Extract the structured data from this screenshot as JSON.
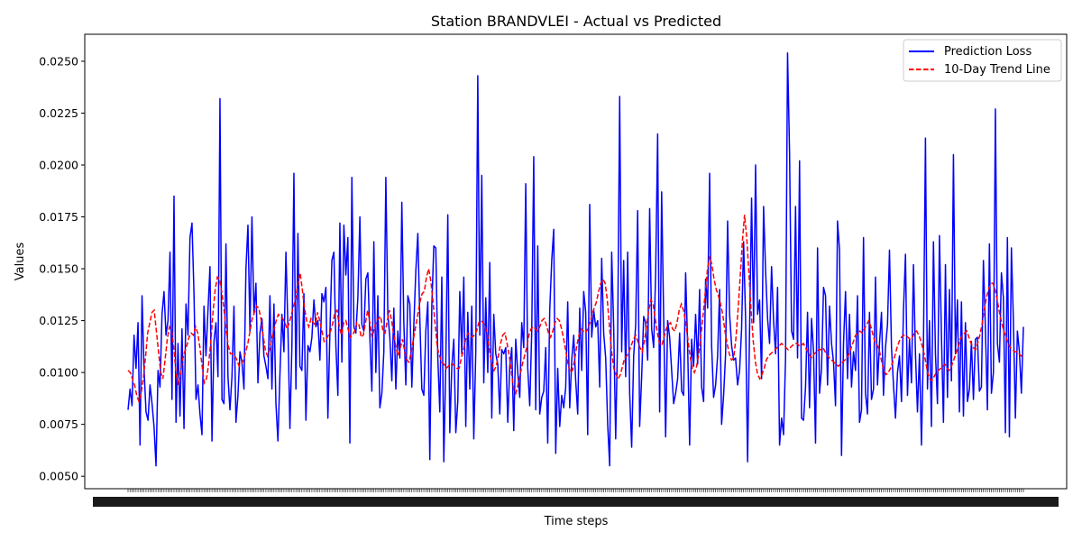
{
  "chart_data": {
    "type": "line",
    "title": "Station BRANDVLEI - Actual vs Predicted",
    "xlabel": "Time steps",
    "ylabel": "Values",
    "ylim": [
      0.0044,
      0.0263
    ],
    "yticks": [
      "0.0050",
      "0.0075",
      "0.0100",
      "0.0125",
      "0.0150",
      "0.0175",
      "0.0200",
      "0.0225",
      "0.0250"
    ],
    "x_tick_labels_note": "",
    "legend_position": "top-right",
    "grid": false,
    "series": [
      {
        "name": "Prediction Loss",
        "color": "#0000ff",
        "style": "solid",
        "values": [
          0.0082,
          0.0092,
          0.0084,
          0.0118,
          0.0102,
          0.0124,
          0.0065,
          0.0137,
          0.0102,
          0.0081,
          0.0077,
          0.0094,
          0.0085,
          0.0074,
          0.0055,
          0.0101,
          0.0093,
          0.0128,
          0.0139,
          0.0118,
          0.0125,
          0.0158,
          0.0087,
          0.0185,
          0.0076,
          0.0114,
          0.0079,
          0.0121,
          0.0073,
          0.0133,
          0.0118,
          0.0165,
          0.0172,
          0.0138,
          0.0087,
          0.0094,
          0.008,
          0.007,
          0.0132,
          0.0108,
          0.013,
          0.0151,
          0.0067,
          0.0115,
          0.0124,
          0.0098,
          0.0232,
          0.0087,
          0.0085,
          0.0162,
          0.0098,
          0.0082,
          0.0098,
          0.0132,
          0.0076,
          0.0089,
          0.011,
          0.0105,
          0.0092,
          0.015,
          0.0171,
          0.012,
          0.0175,
          0.0128,
          0.0143,
          0.0095,
          0.0119,
          0.0126,
          0.0108,
          0.0103,
          0.0097,
          0.0137,
          0.0092,
          0.0133,
          0.0085,
          0.0067,
          0.0099,
          0.0128,
          0.011,
          0.0158,
          0.0122,
          0.0073,
          0.0113,
          0.0196,
          0.0092,
          0.0167,
          0.0103,
          0.0101,
          0.0138,
          0.0077,
          0.0113,
          0.011,
          0.0117,
          0.0135,
          0.0122,
          0.0125,
          0.0106,
          0.0138,
          0.0134,
          0.0141,
          0.0078,
          0.0119,
          0.0154,
          0.0158,
          0.0113,
          0.0089,
          0.0172,
          0.0105,
          0.0171,
          0.0147,
          0.0165,
          0.0066,
          0.0194,
          0.0122,
          0.0119,
          0.0136,
          0.0175,
          0.0123,
          0.012,
          0.0145,
          0.0148,
          0.0117,
          0.0091,
          0.0163,
          0.01,
          0.0137,
          0.0083,
          0.009,
          0.011,
          0.0194,
          0.0128,
          0.0117,
          0.0096,
          0.0131,
          0.0092,
          0.012,
          0.0107,
          0.0182,
          0.0124,
          0.0094,
          0.0137,
          0.0133,
          0.0093,
          0.0123,
          0.0149,
          0.0167,
          0.0126,
          0.0092,
          0.0089,
          0.012,
          0.0134,
          0.0058,
          0.0132,
          0.0161,
          0.016,
          0.0107,
          0.0081,
          0.0146,
          0.0057,
          0.0105,
          0.0176,
          0.0071,
          0.0103,
          0.0116,
          0.0071,
          0.0086,
          0.0139,
          0.0109,
          0.0146,
          0.0074,
          0.0129,
          0.0092,
          0.0132,
          0.0068,
          0.011,
          0.0243,
          0.0118,
          0.0195,
          0.0095,
          0.0136,
          0.01,
          0.0153,
          0.0078,
          0.0128,
          0.0109,
          0.0104,
          0.008,
          0.0111,
          0.0109,
          0.0112,
          0.0076,
          0.0103,
          0.0112,
          0.0072,
          0.0116,
          0.01,
          0.0088,
          0.0124,
          0.0112,
          0.0191,
          0.0102,
          0.0084,
          0.012,
          0.0204,
          0.0082,
          0.0161,
          0.008,
          0.0088,
          0.0091,
          0.0112,
          0.0066,
          0.013,
          0.0154,
          0.0169,
          0.0061,
          0.0102,
          0.0074,
          0.0089,
          0.0083,
          0.0093,
          0.0134,
          0.0083,
          0.0106,
          0.0118,
          0.0096,
          0.008,
          0.0131,
          0.0101,
          0.0139,
          0.0129,
          0.007,
          0.0181,
          0.0117,
          0.013,
          0.0122,
          0.0125,
          0.0093,
          0.0155,
          0.0119,
          0.0107,
          0.0075,
          0.0055,
          0.0158,
          0.0122,
          0.0068,
          0.0119,
          0.0233,
          0.011,
          0.0154,
          0.0098,
          0.0158,
          0.009,
          0.0064,
          0.0108,
          0.0123,
          0.0178,
          0.0074,
          0.0098,
          0.0127,
          0.0124,
          0.0106,
          0.0179,
          0.0121,
          0.0112,
          0.0148,
          0.0215,
          0.0081,
          0.0187,
          0.0127,
          0.0069,
          0.0125,
          0.0117,
          0.0101,
          0.0085,
          0.009,
          0.0097,
          0.0119,
          0.0091,
          0.0089,
          0.0148,
          0.0113,
          0.0065,
          0.0116,
          0.0103,
          0.0128,
          0.0104,
          0.014,
          0.0093,
          0.0086,
          0.0145,
          0.0131,
          0.0196,
          0.0113,
          0.0088,
          0.0094,
          0.0108,
          0.014,
          0.0075,
          0.0089,
          0.0109,
          0.0173,
          0.0128,
          0.0113,
          0.0106,
          0.0107,
          0.0094,
          0.0101,
          0.0121,
          0.0163,
          0.0126,
          0.0057,
          0.0121,
          0.0184,
          0.0124,
          0.02,
          0.0128,
          0.0135,
          0.0097,
          0.018,
          0.0149,
          0.0126,
          0.0114,
          0.0151,
          0.0125,
          0.0109,
          0.0141,
          0.0065,
          0.0078,
          0.007,
          0.0107,
          0.0254,
          0.0206,
          0.012,
          0.0116,
          0.018,
          0.0107,
          0.0202,
          0.0078,
          0.0077,
          0.0093,
          0.0129,
          0.0083,
          0.0126,
          0.011,
          0.0066,
          0.016,
          0.009,
          0.0102,
          0.0141,
          0.0137,
          0.0094,
          0.0132,
          0.0114,
          0.0105,
          0.0084,
          0.0173,
          0.0159,
          0.006,
          0.0114,
          0.0139,
          0.0097,
          0.0128,
          0.0093,
          0.011,
          0.0101,
          0.0137,
          0.0076,
          0.0082,
          0.0165,
          0.009,
          0.008,
          0.0129,
          0.0087,
          0.0092,
          0.0146,
          0.0094,
          0.0114,
          0.0129,
          0.0089,
          0.0112,
          0.0123,
          0.0159,
          0.0112,
          0.0094,
          0.0078,
          0.01,
          0.0108,
          0.0086,
          0.013,
          0.0157,
          0.0089,
          0.0116,
          0.0095,
          0.0152,
          0.0109,
          0.0081,
          0.0109,
          0.0065,
          0.0113,
          0.0213,
          0.0092,
          0.0125,
          0.0074,
          0.0163,
          0.0109,
          0.0085,
          0.0166,
          0.0118,
          0.0076,
          0.0152,
          0.0088,
          0.014,
          0.0096,
          0.0205,
          0.0109,
          0.0135,
          0.0081,
          0.0134,
          0.0079,
          0.0124,
          0.0086,
          0.0092,
          0.0115,
          0.0087,
          0.0116,
          0.0117,
          0.0091,
          0.0093,
          0.0154,
          0.0121,
          0.0082,
          0.0162,
          0.009,
          0.01,
          0.0227,
          0.0114,
          0.0105,
          0.0148,
          0.0136,
          0.0071,
          0.0165,
          0.0069,
          0.016,
          0.0125,
          0.0078,
          0.012,
          0.011,
          0.009,
          0.0122
        ]
      },
      {
        "name": "10-Day Trend Line",
        "color": "#ff0000",
        "style": "dashed",
        "values": [
          0.0101,
          0.01,
          0.0097,
          0.0094,
          0.0089,
          0.0086,
          0.009,
          0.0097,
          0.0107,
          0.0119,
          0.0124,
          0.0129,
          0.013,
          0.012,
          0.011,
          0.01,
          0.0097,
          0.0106,
          0.0116,
          0.0122,
          0.012,
          0.0112,
          0.01,
          0.0094,
          0.0099,
          0.0106,
          0.011,
          0.0113,
          0.0117,
          0.0119,
          0.0118,
          0.0122,
          0.0119,
          0.0112,
          0.0103,
          0.0095,
          0.0097,
          0.0104,
          0.0115,
          0.0129,
          0.014,
          0.0146,
          0.0145,
          0.0139,
          0.0131,
          0.0121,
          0.0113,
          0.0109,
          0.0109,
          0.0108,
          0.0106,
          0.0103,
          0.0104,
          0.0106,
          0.011,
          0.0114,
          0.012,
          0.0126,
          0.0129,
          0.0132,
          0.0131,
          0.0126,
          0.0118,
          0.0111,
          0.0108,
          0.0111,
          0.0116,
          0.0121,
          0.0125,
          0.0128,
          0.0127,
          0.0126,
          0.0124,
          0.0121,
          0.0124,
          0.0128,
          0.0132,
          0.0136,
          0.0143,
          0.0148,
          0.014,
          0.0131,
          0.0125,
          0.0122,
          0.0126,
          0.0124,
          0.0123,
          0.0129,
          0.0125,
          0.012,
          0.0115,
          0.0116,
          0.0118,
          0.012,
          0.0124,
          0.0129,
          0.013,
          0.0122,
          0.0118,
          0.0124,
          0.0125,
          0.0121,
          0.0117,
          0.0118,
          0.012,
          0.0124,
          0.0123,
          0.0117,
          0.0118,
          0.0124,
          0.013,
          0.0124,
          0.0117,
          0.0121,
          0.0125,
          0.0126,
          0.0127,
          0.012,
          0.0119,
          0.0125,
          0.013,
          0.0125,
          0.0118,
          0.0112,
          0.0108,
          0.0112,
          0.0116,
          0.011,
          0.0106,
          0.0105,
          0.011,
          0.0116,
          0.0122,
          0.0128,
          0.0134,
          0.0138,
          0.0139,
          0.0146,
          0.015,
          0.0144,
          0.0134,
          0.0123,
          0.0112,
          0.0108,
          0.0105,
          0.0104,
          0.0102,
          0.0103,
          0.0104,
          0.0104,
          0.0103,
          0.0102,
          0.0102,
          0.0107,
          0.0111,
          0.0116,
          0.0119,
          0.0118,
          0.0117,
          0.0118,
          0.012,
          0.0124,
          0.0125,
          0.0124,
          0.0122,
          0.0118,
          0.011,
          0.0104,
          0.0101,
          0.0103,
          0.0108,
          0.0114,
          0.0118,
          0.0119,
          0.0114,
          0.0108,
          0.01,
          0.0092,
          0.009,
          0.0094,
          0.0099,
          0.0104,
          0.0108,
          0.0112,
          0.0118,
          0.0121,
          0.0122,
          0.0121,
          0.012,
          0.0122,
          0.0125,
          0.0126,
          0.0123,
          0.0119,
          0.0117,
          0.012,
          0.0124,
          0.0126,
          0.0125,
          0.0121,
          0.0116,
          0.011,
          0.0104,
          0.01,
          0.0101,
          0.0106,
          0.0113,
          0.0118,
          0.0121,
          0.012,
          0.0119,
          0.0121,
          0.0124,
          0.0128,
          0.0131,
          0.0134,
          0.0139,
          0.0143,
          0.0145,
          0.0143,
          0.0135,
          0.0122,
          0.011,
          0.0102,
          0.0099,
          0.0097,
          0.0099,
          0.0103,
          0.0107,
          0.0108,
          0.011,
          0.0113,
          0.0116,
          0.0118,
          0.0115,
          0.0112,
          0.011,
          0.0115,
          0.0122,
          0.013,
          0.0135,
          0.0133,
          0.0126,
          0.0119,
          0.0114,
          0.0113,
          0.0117,
          0.0121,
          0.0123,
          0.0124,
          0.0121,
          0.012,
          0.0124,
          0.013,
          0.0133,
          0.013,
          0.0124,
          0.0116,
          0.0108,
          0.0102,
          0.01,
          0.0103,
          0.0109,
          0.0118,
          0.0128,
          0.0139,
          0.015,
          0.0156,
          0.0152,
          0.0145,
          0.014,
          0.0137,
          0.0133,
          0.0128,
          0.012,
          0.0114,
          0.0109,
          0.0106,
          0.0107,
          0.0116,
          0.013,
          0.0146,
          0.0163,
          0.0176,
          0.0165,
          0.0148,
          0.013,
          0.0115,
          0.0105,
          0.0099,
          0.0097,
          0.0099,
          0.0102,
          0.0106,
          0.0108,
          0.0109,
          0.011,
          0.0111,
          0.0112,
          0.0113,
          0.0114,
          0.0113,
          0.0112,
          0.0111,
          0.0112,
          0.0113,
          0.0114,
          0.0114,
          0.0113,
          0.0113,
          0.0114,
          0.0112,
          0.011,
          0.0108,
          0.0107,
          0.0109,
          0.011,
          0.0111,
          0.0111,
          0.0112,
          0.011,
          0.0108,
          0.0107,
          0.0106,
          0.0105,
          0.0104,
          0.0103,
          0.0104,
          0.0105,
          0.0106,
          0.0107,
          0.0109,
          0.0112,
          0.0115,
          0.0118,
          0.0119,
          0.012,
          0.0119,
          0.0121,
          0.0123,
          0.0125,
          0.0122,
          0.0118,
          0.0114,
          0.0113,
          0.011,
          0.0105,
          0.0101,
          0.0099,
          0.01,
          0.0102,
          0.0105,
          0.0108,
          0.0112,
          0.0115,
          0.0117,
          0.0118,
          0.0118,
          0.0117,
          0.0116,
          0.0117,
          0.0119,
          0.012,
          0.0118,
          0.0115,
          0.0111,
          0.0106,
          0.01,
          0.0097,
          0.0096,
          0.0098,
          0.01,
          0.0101,
          0.0102,
          0.0103,
          0.0104,
          0.0102,
          0.0101,
          0.0103,
          0.0106,
          0.0109,
          0.0112,
          0.0116,
          0.0118,
          0.0119,
          0.012,
          0.0117,
          0.0114,
          0.0112,
          0.0111,
          0.0114,
          0.0118,
          0.0123,
          0.013,
          0.0136,
          0.014,
          0.0143,
          0.0143,
          0.014,
          0.0135,
          0.0129,
          0.0124,
          0.012,
          0.0117,
          0.0114,
          0.0112,
          0.0111,
          0.011,
          0.011,
          0.0109,
          0.0108,
          0.0107
        ]
      }
    ]
  }
}
